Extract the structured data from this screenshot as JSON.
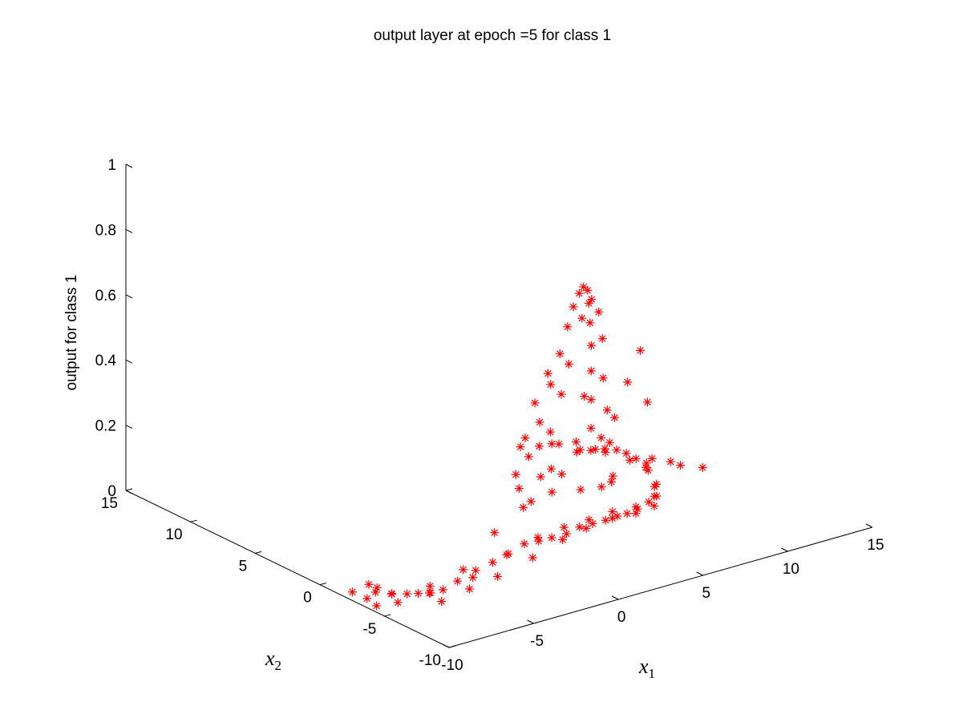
{
  "chart_data": {
    "type": "scatter",
    "projection": "3d",
    "title": "output layer at epoch =5 for class 1",
    "xlabel": "x",
    "xlabel_sub": "1",
    "ylabel": "x",
    "ylabel_sub": "2",
    "zlabel": "output for class 1",
    "x_ticks": [
      "-10",
      "-5",
      "0",
      "5",
      "10",
      "15"
    ],
    "y_ticks": [
      "-10",
      "-5",
      "0",
      "5",
      "10",
      "15"
    ],
    "z_ticks": [
      "0",
      "0.2",
      "0.4",
      "0.6",
      "0.8",
      "1"
    ],
    "xlim": [
      -10,
      15
    ],
    "ylim": [
      -10,
      15
    ],
    "zlim": [
      0,
      1
    ],
    "marker": "*",
    "marker_color": "#ff0000",
    "grid": false,
    "series": [
      {
        "points": [
          [
            9.0,
            5.0,
            0.03
          ],
          [
            9.4,
            4.1,
            0.05
          ],
          [
            8.7,
            6.0,
            0.04
          ],
          [
            9.9,
            3.1,
            0.06
          ],
          [
            10.2,
            2.0,
            0.05
          ],
          [
            10.0,
            0.8,
            0.04
          ],
          [
            9.5,
            -0.5,
            0.03
          ],
          [
            8.6,
            -1.7,
            0.03
          ],
          [
            7.6,
            -2.4,
            0.04
          ],
          [
            6.4,
            -3.1,
            0.05
          ],
          [
            5.4,
            -3.6,
            0.06
          ],
          [
            4.6,
            -3.9,
            0.07
          ],
          [
            3.6,
            -4.3,
            0.08
          ],
          [
            2.6,
            -4.6,
            0.09
          ],
          [
            1.6,
            -4.9,
            0.1
          ],
          [
            0.6,
            -5.2,
            0.1
          ],
          [
            -0.5,
            -5.5,
            0.11
          ],
          [
            -1.5,
            -5.8,
            0.12
          ],
          [
            -2.5,
            -6.0,
            0.13
          ],
          [
            -3.6,
            -6.2,
            0.12
          ],
          [
            -4.6,
            -6.3,
            0.11
          ],
          [
            -5.6,
            -6.3,
            0.1
          ],
          [
            -6.6,
            -6.2,
            0.08
          ],
          [
            -7.3,
            -6.0,
            0.06
          ],
          [
            -7.8,
            -5.6,
            0.05
          ],
          [
            -8.0,
            -5.0,
            0.04
          ],
          [
            -8.2,
            -4.4,
            0.03
          ],
          [
            -8.5,
            -3.6,
            0.02
          ],
          [
            -8.6,
            -2.6,
            0.02
          ],
          [
            -8.4,
            -1.7,
            0.01
          ],
          [
            -9.0,
            -3.0,
            0.02
          ],
          [
            -8.8,
            -4.0,
            0.03
          ],
          [
            -7.5,
            -5.3,
            0.04
          ],
          [
            -6.0,
            -6.6,
            0.09
          ],
          [
            -4.0,
            -6.6,
            0.13
          ],
          [
            -2.0,
            -6.4,
            0.15
          ],
          [
            0.0,
            -5.8,
            0.14
          ],
          [
            2.0,
            -5.1,
            0.12
          ],
          [
            4.0,
            -4.3,
            0.1
          ],
          [
            6.0,
            -3.5,
            0.07
          ],
          [
            8.0,
            -2.3,
            0.05
          ],
          [
            9.0,
            -1.0,
            0.04
          ],
          [
            10.4,
            1.5,
            0.03
          ],
          [
            10.6,
            3.0,
            0.02
          ],
          [
            10.3,
            4.5,
            0.02
          ],
          [
            9.8,
            5.8,
            0.01
          ],
          [
            10.8,
            5.2,
            0.01
          ],
          [
            11.0,
            3.8,
            0.02
          ],
          [
            8.3,
            7.0,
            0.02
          ],
          [
            7.8,
            7.8,
            0.01
          ],
          [
            11.3,
            2.2,
            0.03
          ],
          [
            11.6,
            0.4,
            0.04
          ],
          [
            12.0,
            -0.8,
            0.05
          ],
          [
            11.5,
            6.4,
            0.01
          ],
          [
            9.2,
            7.2,
            0.01
          ],
          [
            -9.6,
            -2.0,
            0.01
          ],
          [
            -9.8,
            -3.4,
            0.02
          ],
          [
            -9.2,
            -5.0,
            0.03
          ],
          [
            -10.0,
            -4.4,
            0.02
          ],
          [
            -8.0,
            -6.8,
            0.05
          ],
          [
            -6.5,
            -7.0,
            0.07
          ],
          [
            -5.0,
            -7.2,
            0.09
          ],
          [
            -3.0,
            -7.3,
            0.12
          ],
          [
            -1.0,
            -7.0,
            0.14
          ],
          [
            1.0,
            -6.2,
            0.13
          ],
          [
            3.0,
            -5.6,
            0.12
          ],
          [
            5.0,
            -4.8,
            0.09
          ],
          [
            7.0,
            -3.6,
            0.06
          ],
          [
            -7.0,
            -4.6,
            0.04
          ],
          [
            -5.5,
            -5.2,
            0.08
          ],
          [
            -3.5,
            -5.0,
            0.16
          ],
          [
            -1.5,
            -4.6,
            0.2
          ],
          [
            0.5,
            -4.2,
            0.21
          ],
          [
            2.5,
            -3.8,
            0.18
          ],
          [
            4.5,
            -2.8,
            0.14
          ],
          [
            6.0,
            -1.6,
            0.11
          ],
          [
            7.0,
            -0.4,
            0.09
          ],
          [
            -2.2,
            -5.2,
            0.28
          ],
          [
            -1.4,
            -4.9,
            0.36
          ],
          [
            -0.6,
            -4.7,
            0.45
          ],
          [
            0.2,
            -4.5,
            0.55
          ],
          [
            0.9,
            -4.3,
            0.63
          ],
          [
            1.5,
            -4.1,
            0.7
          ],
          [
            2.0,
            -3.9,
            0.75
          ],
          [
            2.5,
            -3.7,
            0.78
          ],
          [
            2.9,
            -3.5,
            0.79
          ],
          [
            3.3,
            -3.3,
            0.77
          ],
          [
            3.6,
            -3.0,
            0.72
          ],
          [
            3.9,
            -2.7,
            0.65
          ],
          [
            4.2,
            -2.4,
            0.57
          ],
          [
            4.5,
            -2.0,
            0.48
          ],
          [
            4.8,
            -1.6,
            0.38
          ],
          [
            5.1,
            -1.2,
            0.28
          ],
          [
            5.4,
            -0.8,
            0.2
          ],
          [
            -1.0,
            -5.3,
            0.3
          ],
          [
            -0.2,
            -5.0,
            0.42
          ],
          [
            0.6,
            -4.8,
            0.52
          ],
          [
            1.2,
            -4.6,
            0.6
          ],
          [
            2.2,
            -4.3,
            0.72
          ],
          [
            3.0,
            -4.0,
            0.76
          ],
          [
            3.8,
            -3.5,
            0.7
          ],
          [
            4.4,
            -3.0,
            0.6
          ],
          [
            4.9,
            -2.4,
            0.46
          ],
          [
            5.6,
            -1.8,
            0.34
          ],
          [
            6.2,
            -1.2,
            0.22
          ],
          [
            -3.0,
            -6.0,
            0.35
          ],
          [
            -2.6,
            -6.2,
            0.46
          ],
          [
            -1.8,
            -5.9,
            0.55
          ],
          [
            -0.8,
            -5.6,
            0.62
          ],
          [
            1.8,
            -5.0,
            0.5
          ],
          [
            6.5,
            -2.2,
            0.42
          ],
          [
            7.4,
            -2.0,
            0.5
          ],
          [
            8.2,
            -1.5,
            0.32
          ],
          [
            6.8,
            -0.8,
            0.28
          ],
          [
            3.0,
            -2.8,
            0.3
          ],
          [
            2.0,
            -3.0,
            0.22
          ],
          [
            1.0,
            -3.5,
            0.26
          ],
          [
            -0.5,
            -3.9,
            0.19
          ],
          [
            7.0,
            -3.0,
            0.18
          ],
          [
            8.5,
            -2.9,
            0.16
          ]
        ]
      }
    ]
  }
}
